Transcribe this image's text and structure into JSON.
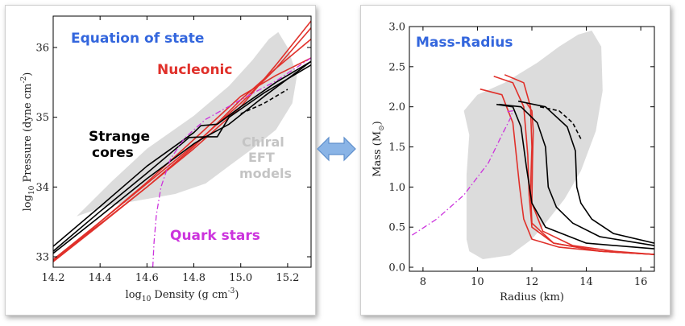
{
  "colors": {
    "nucleonic": "#e0302a",
    "strange": "#000000",
    "quark": "#cc33dd",
    "band": "#dcdcdc",
    "title": "#3366dd",
    "arrow_fill": "#8ab4e6",
    "arrow_stroke": "#5f8fcc"
  },
  "icons": {
    "double_arrow": "left-right-arrow-icon"
  },
  "chart_data": [
    {
      "type": "line",
      "title": "Equation of state",
      "xlabel_main": "log",
      "xlabel_sub": "10",
      "xlabel_rest": " Density (g cm",
      "xlabel_sup": "-3",
      "xlabel_end": ")",
      "ylabel_main": "log",
      "ylabel_sub": "10",
      "ylabel_rest": " Pressure (dyne cm",
      "ylabel_sup": "-2",
      "ylabel_end": ")",
      "xlim": [
        14.2,
        15.3
      ],
      "ylim": [
        32.85,
        36.45
      ],
      "xticks": [
        14.2,
        14.4,
        14.6,
        14.8,
        15.0,
        15.2
      ],
      "xtick_labels": [
        "14.2",
        "14.4",
        "14.6",
        "14.8",
        "15.0",
        "15.2"
      ],
      "yticks": [
        33,
        34,
        35,
        36
      ],
      "ytick_labels": [
        "33",
        "34",
        "35",
        "36"
      ],
      "annotations": {
        "nucleonic": "Nucleonic",
        "strange_1": "Strange",
        "strange_2": "cores",
        "chiral_1": "Chiral",
        "chiral_2": "EFT",
        "chiral_3": "models",
        "quark": "Quark stars"
      },
      "band": [
        [
          14.3,
          33.58
        ],
        [
          14.45,
          34.08
        ],
        [
          14.6,
          34.55
        ],
        [
          14.8,
          35.02
        ],
        [
          14.95,
          35.45
        ],
        [
          15.05,
          35.82
        ],
        [
          15.12,
          36.12
        ],
        [
          15.16,
          36.22
        ],
        [
          15.2,
          36.0
        ],
        [
          15.24,
          35.6
        ],
        [
          15.22,
          35.2
        ],
        [
          15.15,
          34.82
        ],
        [
          15.05,
          34.55
        ],
        [
          14.95,
          34.3
        ],
        [
          14.85,
          34.05
        ],
        [
          14.72,
          33.9
        ],
        [
          14.55,
          33.8
        ],
        [
          14.42,
          33.72
        ],
        [
          14.3,
          33.58
        ]
      ],
      "series": [
        {
          "group": "nucleonic",
          "points": [
            [
              14.2,
              32.95
            ],
            [
              14.4,
              33.47
            ],
            [
              14.6,
              34.0
            ],
            [
              14.8,
              34.55
            ],
            [
              15.0,
              35.15
            ],
            [
              15.15,
              35.75
            ],
            [
              15.3,
              36.38
            ]
          ]
        },
        {
          "group": "nucleonic",
          "points": [
            [
              14.2,
              32.96
            ],
            [
              14.4,
              33.5
            ],
            [
              14.6,
              34.05
            ],
            [
              14.8,
              34.6
            ],
            [
              15.0,
              35.2
            ],
            [
              15.15,
              35.7
            ],
            [
              15.3,
              36.28
            ]
          ]
        },
        {
          "group": "nucleonic",
          "points": [
            [
              14.2,
              32.93
            ],
            [
              14.4,
              33.46
            ],
            [
              14.6,
              34.0
            ],
            [
              14.8,
              34.58
            ],
            [
              15.0,
              35.25
            ],
            [
              15.15,
              35.7
            ],
            [
              15.3,
              36.12
            ]
          ]
        },
        {
          "group": "nucleonic",
          "points": [
            [
              14.2,
              32.94
            ],
            [
              14.4,
              33.5
            ],
            [
              14.6,
              34.07
            ],
            [
              14.8,
              34.68
            ],
            [
              15.0,
              35.3
            ],
            [
              15.15,
              35.6
            ],
            [
              15.3,
              35.85
            ]
          ]
        },
        {
          "group": "strange",
          "points": [
            [
              14.2,
              33.15
            ],
            [
              14.4,
              33.72
            ],
            [
              14.6,
              34.3
            ],
            [
              14.8,
              34.78
            ],
            [
              14.83,
              34.88
            ],
            [
              14.9,
              34.9
            ],
            [
              15.0,
              35.15
            ],
            [
              15.15,
              35.5
            ],
            [
              15.3,
              35.8
            ]
          ]
        },
        {
          "group": "strange",
          "points": [
            [
              14.2,
              33.08
            ],
            [
              14.4,
              33.65
            ],
            [
              14.6,
              34.2
            ],
            [
              14.78,
              34.71
            ],
            [
              14.85,
              34.72
            ],
            [
              14.9,
              34.72
            ],
            [
              14.95,
              35.0
            ],
            [
              15.1,
              35.35
            ],
            [
              15.3,
              35.75
            ]
          ]
        },
        {
          "group": "strange",
          "points": [
            [
              14.2,
              33.05
            ],
            [
              14.4,
              33.58
            ],
            [
              14.6,
              34.12
            ],
            [
              14.8,
              34.62
            ],
            [
              14.85,
              34.72
            ],
            [
              14.95,
              34.9
            ],
            [
              15.1,
              35.3
            ],
            [
              15.3,
              35.8
            ]
          ]
        },
        {
          "group": "strange",
          "dashed": true,
          "points": [
            [
              15.0,
              35.05
            ],
            [
              15.1,
              35.2
            ],
            [
              15.2,
              35.4
            ]
          ]
        },
        {
          "group": "quark",
          "dashdot": true,
          "points": [
            [
              14.625,
              32.85
            ],
            [
              14.63,
              33.2
            ],
            [
              14.64,
              33.6
            ],
            [
              14.66,
              34.0
            ],
            [
              14.7,
              34.4
            ],
            [
              14.76,
              34.7
            ],
            [
              14.85,
              34.97
            ],
            [
              15.0,
              35.25
            ],
            [
              15.15,
              35.52
            ],
            [
              15.3,
              35.85
            ]
          ]
        }
      ]
    },
    {
      "type": "line",
      "title": "Mass-Radius",
      "xlabel": "Radius (km)",
      "ylabel_main": "Mass (M",
      "ylabel_sub": "⊙",
      "ylabel_end": ")",
      "xlim": [
        7.5,
        16.5
      ],
      "ylim": [
        -0.05,
        3.0
      ],
      "xticks": [
        8,
        10,
        12,
        14,
        16
      ],
      "xtick_labels": [
        "8",
        "10",
        "12",
        "14",
        "16"
      ],
      "yticks": [
        0.0,
        0.5,
        1.0,
        1.5,
        2.0,
        2.5,
        3.0
      ],
      "ytick_labels": [
        "0.0",
        "0.5",
        "1.0",
        "1.5",
        "2.0",
        "2.5",
        "3.0"
      ],
      "band": [
        [
          9.6,
          0.35
        ],
        [
          9.6,
          1.15
        ],
        [
          9.7,
          1.65
        ],
        [
          9.5,
          1.95
        ],
        [
          10.0,
          2.15
        ],
        [
          11.0,
          2.3
        ],
        [
          12.2,
          2.55
        ],
        [
          13.0,
          2.75
        ],
        [
          13.7,
          2.9
        ],
        [
          14.2,
          2.95
        ],
        [
          14.55,
          2.75
        ],
        [
          14.6,
          2.2
        ],
        [
          14.35,
          1.7
        ],
        [
          13.8,
          1.2
        ],
        [
          13.2,
          0.85
        ],
        [
          12.5,
          0.55
        ],
        [
          12.0,
          0.35
        ],
        [
          11.2,
          0.15
        ],
        [
          10.2,
          0.1
        ],
        [
          9.7,
          0.2
        ],
        [
          9.6,
          0.35
        ]
      ],
      "series": [
        {
          "group": "nucleonic",
          "points": [
            [
              10.1,
              2.22
            ],
            [
              10.9,
              2.15
            ],
            [
              11.3,
              1.8
            ],
            [
              11.55,
              1.0
            ],
            [
              11.7,
              0.6
            ],
            [
              12.0,
              0.35
            ],
            [
              13.0,
              0.25
            ],
            [
              14.5,
              0.2
            ],
            [
              16.5,
              0.16
            ]
          ]
        },
        {
          "group": "nucleonic",
          "points": [
            [
              10.6,
              2.38
            ],
            [
              11.3,
              2.3
            ],
            [
              11.7,
              2.0
            ],
            [
              11.85,
              1.4
            ],
            [
              11.9,
              0.9
            ],
            [
              12.0,
              0.5
            ],
            [
              12.8,
              0.3
            ],
            [
              14.5,
              0.2
            ],
            [
              16.5,
              0.16
            ]
          ]
        },
        {
          "group": "nucleonic",
          "points": [
            [
              11.0,
              2.4
            ],
            [
              11.7,
              2.3
            ],
            [
              11.95,
              2.0
            ],
            [
              12.0,
              1.5
            ],
            [
              11.95,
              0.95
            ],
            [
              12.0,
              0.55
            ],
            [
              12.8,
              0.3
            ],
            [
              14.5,
              0.2
            ],
            [
              16.5,
              0.16
            ]
          ]
        },
        {
          "group": "nucleonic",
          "points": [
            [
              11.8,
              2.05
            ],
            [
              12.0,
              1.95
            ],
            [
              12.05,
              1.7
            ],
            [
              12.02,
              1.3
            ],
            [
              12.0,
              0.8
            ],
            [
              12.4,
              0.45
            ],
            [
              13.5,
              0.27
            ],
            [
              15.0,
              0.2
            ],
            [
              16.5,
              0.16
            ]
          ]
        },
        {
          "group": "strange",
          "points": [
            [
              10.7,
              2.03
            ],
            [
              11.3,
              2.0
            ],
            [
              11.6,
              1.75
            ],
            [
              11.8,
              1.25
            ],
            [
              12.0,
              0.8
            ],
            [
              12.5,
              0.5
            ],
            [
              14.0,
              0.3
            ],
            [
              16.5,
              0.23
            ]
          ]
        },
        {
          "group": "strange",
          "points": [
            [
              10.8,
              2.03
            ],
            [
              11.6,
              2.0
            ],
            [
              12.2,
              1.8
            ],
            [
              12.5,
              1.5
            ],
            [
              12.6,
              1.0
            ],
            [
              12.9,
              0.75
            ],
            [
              13.5,
              0.55
            ],
            [
              14.5,
              0.38
            ],
            [
              16.5,
              0.27
            ]
          ]
        },
        {
          "group": "strange",
          "points": [
            [
              11.5,
              2.07
            ],
            [
              12.5,
              2.0
            ],
            [
              13.3,
              1.75
            ],
            [
              13.6,
              1.45
            ],
            [
              13.65,
              1.0
            ],
            [
              13.8,
              0.8
            ],
            [
              14.2,
              0.6
            ],
            [
              15.0,
              0.42
            ],
            [
              16.5,
              0.3
            ]
          ]
        },
        {
          "group": "strange",
          "dashed": true,
          "points": [
            [
              12.3,
              2.0
            ],
            [
              13.0,
              1.95
            ],
            [
              13.5,
              1.8
            ],
            [
              13.8,
              1.6
            ]
          ]
        },
        {
          "group": "quark",
          "dashdot": true,
          "points": [
            [
              7.6,
              0.4
            ],
            [
              8.5,
              0.6
            ],
            [
              9.5,
              0.9
            ],
            [
              10.4,
              1.3
            ],
            [
              10.9,
              1.65
            ],
            [
              11.2,
              1.85
            ],
            [
              11.3,
              1.95
            ],
            [
              11.1,
              1.94
            ]
          ]
        }
      ]
    }
  ]
}
